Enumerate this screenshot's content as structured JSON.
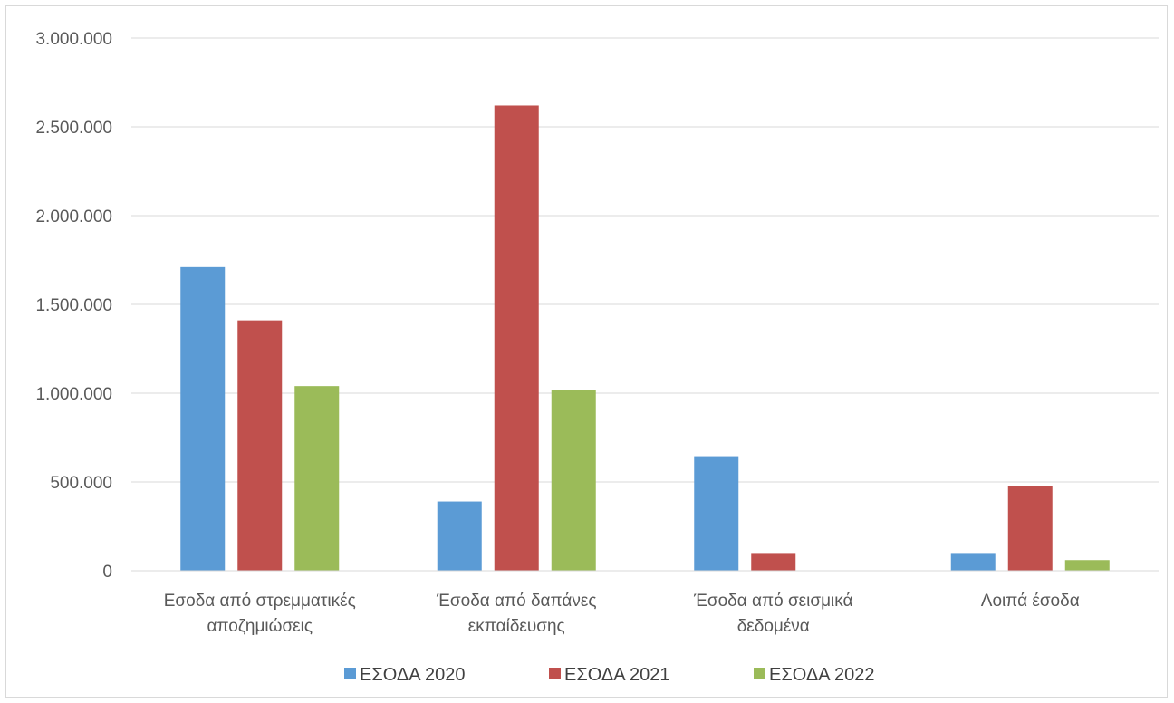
{
  "chart_data": {
    "type": "bar",
    "categories": [
      [
        "Εσοδα από στρεμματικές",
        "αποζημιώσεις"
      ],
      [
        "Έσοδα από δαπάνες",
        "εκπαίδευσης"
      ],
      [
        "Έσοδα από σεισμικά",
        "δεδομένα"
      ],
      [
        "Λοιπά έσοδα"
      ]
    ],
    "series": [
      {
        "name": "ΕΣΟΔΑ 2020",
        "color": "#5b9bd5",
        "values": [
          1710000,
          390000,
          645000,
          100000
        ]
      },
      {
        "name": "ΕΣΟΔΑ 2021",
        "color": "#c0504d",
        "values": [
          1410000,
          2620000,
          100000,
          475000
        ]
      },
      {
        "name": "ΕΣΟΔΑ 2022",
        "color": "#9bbb59",
        "values": [
          1040000,
          1020000,
          0,
          60000
        ]
      }
    ],
    "yticks": [
      "0",
      "500.000",
      "1.000.000",
      "1.500.000",
      "2.000.000",
      "2.500.000",
      "3.000.000"
    ],
    "ylim": [
      0,
      3000000
    ],
    "grid": true,
    "legend_position": "bottom",
    "title": "",
    "xlabel": "",
    "ylabel": ""
  }
}
